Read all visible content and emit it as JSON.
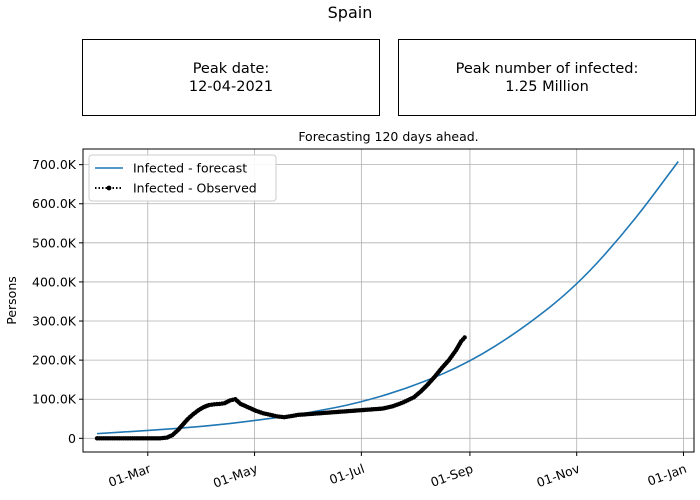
{
  "figure": {
    "suptitle": "Spain",
    "peak_date_label": "Peak date:",
    "peak_date_value": "12-04-2021",
    "peak_infected_label": "Peak number of infected:",
    "peak_infected_value": "1.25 Million"
  },
  "chart_data": {
    "type": "line",
    "title": "Forecasting 120 days ahead.",
    "xlabel": "",
    "ylabel": "Persons",
    "x_ticks": [
      "01-Mar",
      "01-May",
      "01-Jul",
      "01-Sep",
      "01-Nov",
      "01-Jan"
    ],
    "y_ticks": [
      "0",
      "100.0K",
      "200.0K",
      "300.0K",
      "400.0K",
      "500.0K",
      "600.0K",
      "700.0K"
    ],
    "y_tick_values": [
      0,
      100000,
      200000,
      300000,
      400000,
      500000,
      600000,
      700000
    ],
    "ylim": [
      -35000,
      740000
    ],
    "xlim": [
      "2020-01-24",
      "2021-01-07"
    ],
    "grid": true,
    "legend_position": "top-left",
    "series": [
      {
        "name": "Infected - forecast",
        "color": "#1f77b4",
        "style": "solid",
        "x": [
          "2020-02-01",
          "2020-03-01",
          "2020-04-01",
          "2020-05-01",
          "2020-06-01",
          "2020-07-01",
          "2020-08-01",
          "2020-09-01",
          "2020-10-01",
          "2020-11-01",
          "2020-12-01",
          "2020-12-29"
        ],
        "y": [
          12000,
          20000,
          30000,
          45000,
          65000,
          92000,
          135000,
          195000,
          280000,
          390000,
          540000,
          708000
        ]
      },
      {
        "name": "Infected - Observed",
        "color": "#000000",
        "style": "dotted-markers",
        "x": [
          "2020-02-01",
          "2020-02-15",
          "2020-03-01",
          "2020-03-08",
          "2020-03-12",
          "2020-03-15",
          "2020-03-18",
          "2020-03-21",
          "2020-03-24",
          "2020-03-27",
          "2020-03-30",
          "2020-04-02",
          "2020-04-05",
          "2020-04-08",
          "2020-04-11",
          "2020-04-14",
          "2020-04-17",
          "2020-04-20",
          "2020-04-23",
          "2020-04-26",
          "2020-04-29",
          "2020-05-02",
          "2020-05-06",
          "2020-05-10",
          "2020-05-14",
          "2020-05-18",
          "2020-05-22",
          "2020-05-26",
          "2020-06-01",
          "2020-06-07",
          "2020-06-13",
          "2020-06-19",
          "2020-06-25",
          "2020-07-01",
          "2020-07-07",
          "2020-07-13",
          "2020-07-19",
          "2020-07-25",
          "2020-07-31",
          "2020-08-04",
          "2020-08-08",
          "2020-08-12",
          "2020-08-16",
          "2020-08-20",
          "2020-08-24",
          "2020-08-27",
          "2020-08-29"
        ],
        "y": [
          0,
          0,
          0,
          0,
          2000,
          8000,
          20000,
          35000,
          50000,
          62000,
          72000,
          80000,
          85000,
          87000,
          88000,
          90000,
          97000,
          100000,
          88000,
          82000,
          76000,
          70000,
          64000,
          60000,
          56000,
          54000,
          57000,
          60000,
          62000,
          64000,
          66000,
          68000,
          70000,
          72000,
          74000,
          76000,
          82000,
          92000,
          105000,
          120000,
          138000,
          158000,
          180000,
          200000,
          225000,
          248000,
          258000
        ]
      }
    ]
  }
}
